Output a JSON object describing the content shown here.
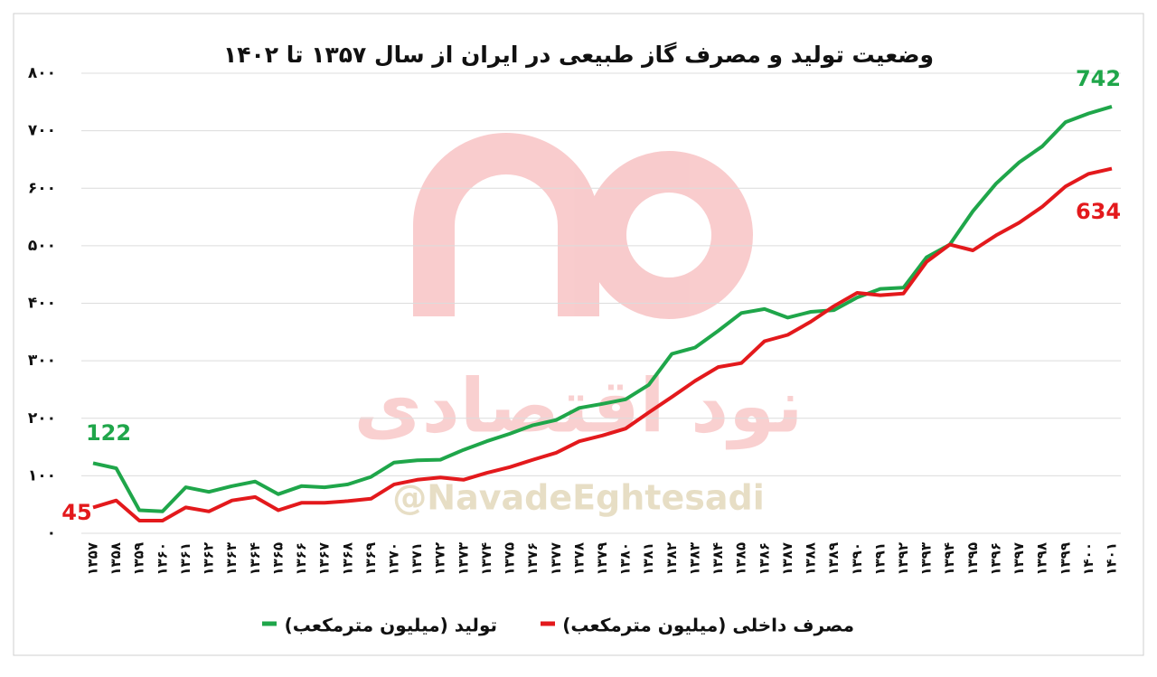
{
  "chart_data": {
    "type": "line",
    "title": "وضعیت تولید و مصرف گاز طبیعی در ایران از سال ۱۳۵۷ تا ۱۴۰۲",
    "watermark": "@NavadeEghtesadi",
    "watermark_logo": "نود اقتصادی",
    "categories": [
      "۱۳۵۷",
      "۱۳۵۸",
      "۱۳۵۹",
      "۱۳۶۰",
      "۱۳۶۱",
      "۱۳۶۲",
      "۱۳۶۳",
      "۱۳۶۴",
      "۱۳۶۵",
      "۱۳۶۶",
      "۱۳۶۷",
      "۱۳۶۸",
      "۱۳۶۹",
      "۱۳۷۰",
      "۱۳۷۱",
      "۱۳۷۲",
      "۱۳۷۳",
      "۱۳۷۴",
      "۱۳۷۵",
      "۱۳۷۶",
      "۱۳۷۷",
      "۱۳۷۸",
      "۱۳۷۹",
      "۱۳۸۰",
      "۱۳۸۱",
      "۱۳۸۲",
      "۱۳۸۳",
      "۱۳۸۴",
      "۱۳۸۵",
      "۱۳۸۶",
      "۱۳۸۷",
      "۱۳۸۸",
      "۱۳۸۹",
      "۱۳۹۰",
      "۱۳۹۱",
      "۱۳۹۲",
      "۱۳۹۳",
      "۱۳۹۴",
      "۱۳۹۵",
      "۱۳۹۶",
      "۱۳۹۷",
      "۱۳۹۸",
      "۱۳۹۹",
      "۱۴۰۰",
      "۱۴۰۱"
    ],
    "series": [
      {
        "name": "تولید (میلیون مترمکعب)",
        "color": "#1fa64a",
        "values": [
          122,
          113,
          40,
          38,
          80,
          72,
          82,
          90,
          68,
          82,
          80,
          85,
          98,
          123,
          127,
          128,
          145,
          160,
          173,
          188,
          197,
          218,
          225,
          233,
          258,
          312,
          323,
          352,
          383,
          390,
          375,
          385,
          388,
          410,
          425,
          427,
          480,
          502,
          560,
          608,
          645,
          673,
          715,
          730,
          742
        ]
      },
      {
        "name": "مصرف داخلی (میلیون مترمکعب)",
        "color": "#e3191c",
        "values": [
          45,
          57,
          22,
          22,
          45,
          38,
          57,
          63,
          40,
          53,
          53,
          56,
          60,
          85,
          93,
          97,
          93,
          105,
          115,
          128,
          140,
          160,
          170,
          182,
          210,
          237,
          265,
          289,
          296,
          334,
          345,
          368,
          395,
          418,
          414,
          417,
          472,
          502,
          492,
          518,
          540,
          568,
          603,
          625,
          634
        ]
      }
    ],
    "ylim": [
      0,
      800
    ],
    "yticks": [
      {
        "value": 0,
        "label": "۰"
      },
      {
        "value": 100,
        "label": "۱۰۰"
      },
      {
        "value": 200,
        "label": "۲۰۰"
      },
      {
        "value": 300,
        "label": "۳۰۰"
      },
      {
        "value": 400,
        "label": "۴۰۰"
      },
      {
        "value": 500,
        "label": "۵۰۰"
      },
      {
        "value": 600,
        "label": "۶۰۰"
      },
      {
        "value": 700,
        "label": "۷۰۰"
      },
      {
        "value": 800,
        "label": "۸۰۰"
      }
    ],
    "grid": true
  }
}
